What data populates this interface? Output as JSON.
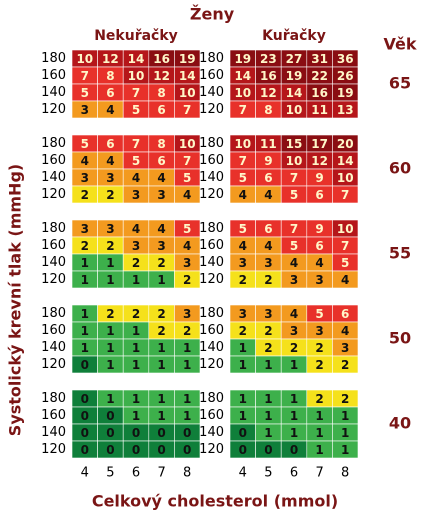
{
  "title": "Ženy",
  "column_headers": [
    "Nekuřačky",
    "Kuřačky"
  ],
  "age_header": "Věk",
  "y_label": "Systolický krevní tlak (mmHg)",
  "x_label": "Celkový cholesterol (mmol)",
  "bp_levels": [
    180,
    160,
    140,
    120
  ],
  "cholesterol_levels": [
    4,
    5,
    6,
    7,
    8
  ],
  "ages": [
    {
      "age": 65,
      "nonsmoker": [
        [
          10,
          12,
          14,
          16,
          19
        ],
        [
          7,
          8,
          10,
          12,
          14
        ],
        [
          5,
          6,
          7,
          8,
          10
        ],
        [
          3,
          4,
          5,
          6,
          7
        ]
      ],
      "smoker": [
        [
          19,
          23,
          27,
          31,
          36
        ],
        [
          14,
          16,
          19,
          22,
          26
        ],
        [
          10,
          12,
          14,
          16,
          19
        ],
        [
          7,
          8,
          10,
          11,
          13
        ]
      ]
    },
    {
      "age": 60,
      "nonsmoker": [
        [
          5,
          6,
          7,
          8,
          10
        ],
        [
          4,
          4,
          5,
          6,
          7
        ],
        [
          3,
          3,
          4,
          4,
          5
        ],
        [
          2,
          2,
          3,
          3,
          4
        ]
      ],
      "smoker": [
        [
          10,
          11,
          15,
          17,
          20
        ],
        [
          7,
          9,
          10,
          12,
          14
        ],
        [
          5,
          6,
          7,
          9,
          10
        ],
        [
          4,
          4,
          5,
          6,
          7
        ]
      ]
    },
    {
      "age": 55,
      "nonsmoker": [
        [
          3,
          3,
          4,
          4,
          5
        ],
        [
          2,
          2,
          3,
          3,
          4
        ],
        [
          1,
          1,
          2,
          2,
          3
        ],
        [
          1,
          1,
          1,
          1,
          2
        ]
      ],
      "smoker": [
        [
          5,
          6,
          7,
          9,
          10
        ],
        [
          4,
          4,
          5,
          6,
          7
        ],
        [
          3,
          3,
          4,
          4,
          5
        ],
        [
          2,
          2,
          3,
          3,
          4
        ]
      ]
    },
    {
      "age": 50,
      "nonsmoker": [
        [
          1,
          2,
          2,
          2,
          3
        ],
        [
          1,
          1,
          1,
          2,
          2
        ],
        [
          1,
          1,
          1,
          1,
          1
        ],
        [
          0,
          1,
          1,
          1,
          1
        ]
      ],
      "smoker": [
        [
          3,
          3,
          4,
          5,
          6
        ],
        [
          2,
          2,
          3,
          3,
          4
        ],
        [
          1,
          2,
          2,
          2,
          3
        ],
        [
          1,
          1,
          1,
          2,
          2
        ]
      ]
    },
    {
      "age": 40,
      "nonsmoker": [
        [
          0,
          1,
          1,
          1,
          1
        ],
        [
          0,
          0,
          1,
          1,
          1
        ],
        [
          0,
          0,
          0,
          0,
          0
        ],
        [
          0,
          0,
          0,
          0,
          0
        ]
      ],
      "smoker": [
        [
          1,
          1,
          1,
          2,
          2
        ],
        [
          1,
          1,
          1,
          1,
          1
        ],
        [
          0,
          1,
          1,
          1,
          1
        ],
        [
          0,
          0,
          0,
          1,
          1
        ]
      ]
    }
  ]
}
